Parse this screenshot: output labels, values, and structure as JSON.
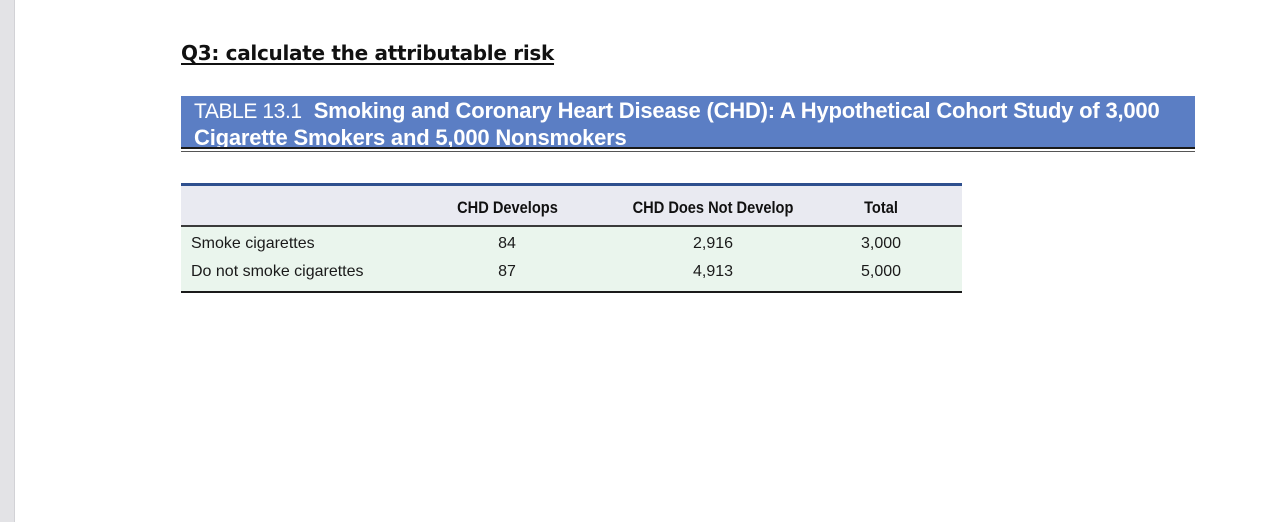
{
  "question": "Q3: calculate the attributable risk",
  "table_caption": {
    "number": "TABLE 13.1",
    "title": "Smoking and Coronary Heart Disease (CHD): A Hypothetical Cohort Study of 3,000 Cigarette Smokers and 5,000 Nonsmokers"
  },
  "table": {
    "headers": [
      "",
      "CHD Develops",
      "CHD Does Not Develop",
      "Total"
    ],
    "rows": [
      {
        "label": "Smoke cigarettes",
        "develops": "84",
        "not_develop": "2,916",
        "total": "3,000"
      },
      {
        "label": "Do not smoke cigarettes",
        "develops": "87",
        "not_develop": "4,913",
        "total": "5,000"
      }
    ]
  },
  "colors": {
    "caption_background": "#5b7ec4",
    "header_background": "#e9eaf1",
    "body_background": "#eaf5ed",
    "top_rule": "#2e4f8e"
  }
}
